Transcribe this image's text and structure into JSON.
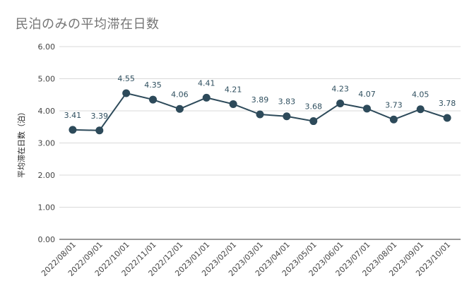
{
  "title": "民泊のみの平均滞在日数",
  "chart_data": {
    "type": "line",
    "title": "民泊のみの平均滞在日数",
    "xlabel": "",
    "ylabel": "平均滞在日数（泊）",
    "categories": [
      "2022/08/01",
      "2022/09/01",
      "2022/10/01",
      "2022/11/01",
      "2022/12/01",
      "2023/01/01",
      "2023/02/01",
      "2023/03/01",
      "2023/04/01",
      "2023/05/01",
      "2023/06/01",
      "2023/07/01",
      "2023/08/01",
      "2023/09/01",
      "2023/10/01"
    ],
    "series": [
      {
        "values": [
          3.41,
          3.39,
          4.55,
          4.35,
          4.06,
          4.41,
          4.21,
          3.89,
          3.83,
          3.68,
          4.23,
          4.07,
          3.73,
          4.05,
          3.78
        ],
        "labels": [
          "3.41",
          "3.39",
          "4.55",
          "4.35",
          "4.06",
          "4.41",
          "4.21",
          "3.89",
          "3.83",
          "3.68",
          "4.23",
          "4.07",
          "3.73",
          "4.05",
          "3.78"
        ]
      }
    ],
    "yticks": [
      "0.00",
      "1.00",
      "2.00",
      "3.00",
      "4.00",
      "5.00",
      "6.00"
    ],
    "ylim": [
      0,
      6
    ],
    "grid": true,
    "legend": "none",
    "colors": {
      "line": "#2d4a5a",
      "marker": "#2d4a5a",
      "grid": "#d9d9d9",
      "axis": "#333333",
      "label": "#2f4f5f"
    }
  }
}
